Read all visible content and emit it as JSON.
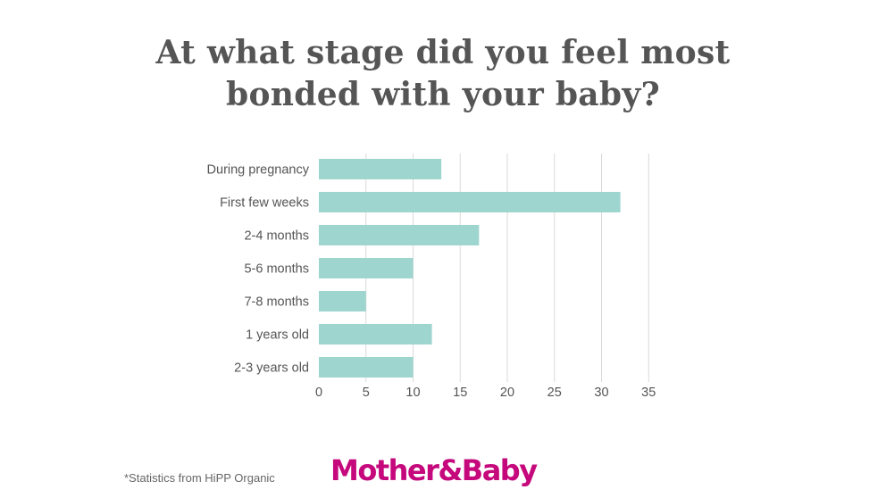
{
  "title_lines": [
    "At what stage did you feel most",
    "bonded with your baby?"
  ],
  "footnote": "*Statistics from HiPP Organic",
  "logo": {
    "text": "Mother&Baby",
    "color": "#c5087c"
  },
  "chart_data": {
    "type": "bar",
    "orientation": "horizontal",
    "categories": [
      "During pregnancy",
      "First few weeks",
      "2-4 months",
      "5-6 months",
      "7-8 months",
      "1 years old",
      "2-3 years old"
    ],
    "values": [
      13,
      32,
      17,
      10,
      5,
      12,
      10
    ],
    "xticks": [
      "0",
      "5",
      "10",
      "15",
      "20",
      "25",
      "30",
      "35"
    ],
    "xlim": [
      0,
      35
    ],
    "grid": true,
    "legend": "none",
    "colors": {
      "bar": "#9fd5cf",
      "grid": "#d9d9d9",
      "label": "#555555"
    }
  }
}
